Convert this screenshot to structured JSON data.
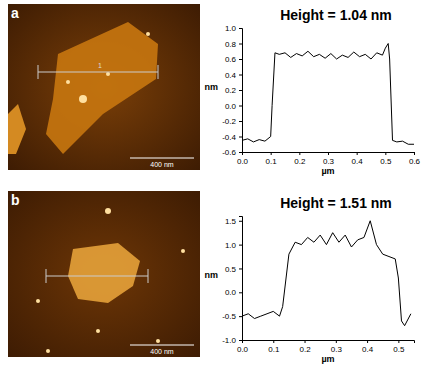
{
  "chart_data": [
    {
      "type": "line",
      "title": "Height = 1.04 nm",
      "x_label": "µm",
      "y_label": "nm",
      "color": "#000000",
      "annotations": [
        "a",
        "1",
        "400 nm"
      ],
      "x": [
        0,
        0.02,
        0.04,
        0.06,
        0.08,
        0.1,
        0.105,
        0.115,
        0.13,
        0.15,
        0.17,
        0.19,
        0.21,
        0.23,
        0.25,
        0.27,
        0.29,
        0.31,
        0.33,
        0.35,
        0.37,
        0.39,
        0.41,
        0.43,
        0.45,
        0.47,
        0.49,
        0.5,
        0.51,
        0.515,
        0.525,
        0.54,
        0.56,
        0.58,
        0.6
      ],
      "values": [
        -0.45,
        -0.43,
        -0.47,
        -0.44,
        -0.46,
        -0.4,
        0.0,
        0.68,
        0.66,
        0.68,
        0.62,
        0.67,
        0.64,
        0.7,
        0.63,
        0.66,
        0.61,
        0.67,
        0.6,
        0.65,
        0.62,
        0.69,
        0.63,
        0.66,
        0.6,
        0.68,
        0.65,
        0.74,
        0.8,
        0.6,
        -0.45,
        -0.47,
        -0.46,
        -0.5,
        -0.5
      ],
      "xlim": [
        0,
        0.6
      ],
      "xticks": [
        {
          "value": 0,
          "label": "0.0"
        },
        {
          "value": 0.1,
          "label": "0.1"
        },
        {
          "value": 0.2,
          "label": "0.2"
        },
        {
          "value": 0.3,
          "label": "0.3"
        },
        {
          "value": 0.4,
          "label": "0.4"
        },
        {
          "value": 0.5,
          "label": "0.5"
        },
        {
          "value": 0.6,
          "label": "0.6"
        }
      ],
      "ylim": [
        -0.6,
        1.0
      ],
      "yticks": [
        {
          "value": -0.6,
          "label": "-0.6"
        },
        {
          "value": -0.4,
          "label": "-0.4"
        },
        {
          "value": -0.2,
          "label": "-0.2"
        },
        {
          "value": 0,
          "label": "0.0"
        },
        {
          "value": 0.2,
          "label": "0.2"
        },
        {
          "value": 0.4,
          "label": "0.4"
        },
        {
          "value": 0.6,
          "label": "0.6"
        },
        {
          "value": 0.8,
          "label": "0.8"
        },
        {
          "value": 1.0,
          "label": "1.0"
        }
      ]
    },
    {
      "type": "line",
      "title": "Height = 1.51 nm",
      "x_label": "µm",
      "y_label": "nm",
      "color": "#000000",
      "annotations": [
        "b",
        "400 nm"
      ],
      "x": [
        0,
        0.02,
        0.04,
        0.06,
        0.08,
        0.1,
        0.12,
        0.13,
        0.15,
        0.17,
        0.19,
        0.21,
        0.23,
        0.25,
        0.27,
        0.29,
        0.31,
        0.33,
        0.35,
        0.37,
        0.39,
        0.41,
        0.43,
        0.45,
        0.47,
        0.49,
        0.5,
        0.51,
        0.52,
        0.54
      ],
      "values": [
        -0.5,
        -0.45,
        -0.55,
        -0.5,
        -0.45,
        -0.4,
        -0.5,
        -0.3,
        0.8,
        1.05,
        1.0,
        1.15,
        1.05,
        1.2,
        1.0,
        1.25,
        1.05,
        1.2,
        0.95,
        1.1,
        1.15,
        1.5,
        1.0,
        0.8,
        0.75,
        0.7,
        0.3,
        -0.6,
        -0.7,
        -0.45
      ],
      "xlim": [
        0,
        0.55
      ],
      "xticks": [
        {
          "value": 0,
          "label": "0.0"
        },
        {
          "value": 0.1,
          "label": "0.1"
        },
        {
          "value": 0.2,
          "label": "0.2"
        },
        {
          "value": 0.3,
          "label": "0.3"
        },
        {
          "value": 0.4,
          "label": "0.4"
        },
        {
          "value": 0.5,
          "label": "0.5"
        }
      ],
      "ylim": [
        -1.0,
        1.6
      ],
      "yticks": [
        {
          "value": -1.0,
          "label": "-1.0"
        },
        {
          "value": -0.5,
          "label": "-0.5"
        },
        {
          "value": 0,
          "label": "0.0"
        },
        {
          "value": 0.5,
          "label": "0.5"
        },
        {
          "value": 1.0,
          "label": "1.0"
        },
        {
          "value": 1.5,
          "label": "1.5"
        }
      ]
    }
  ]
}
